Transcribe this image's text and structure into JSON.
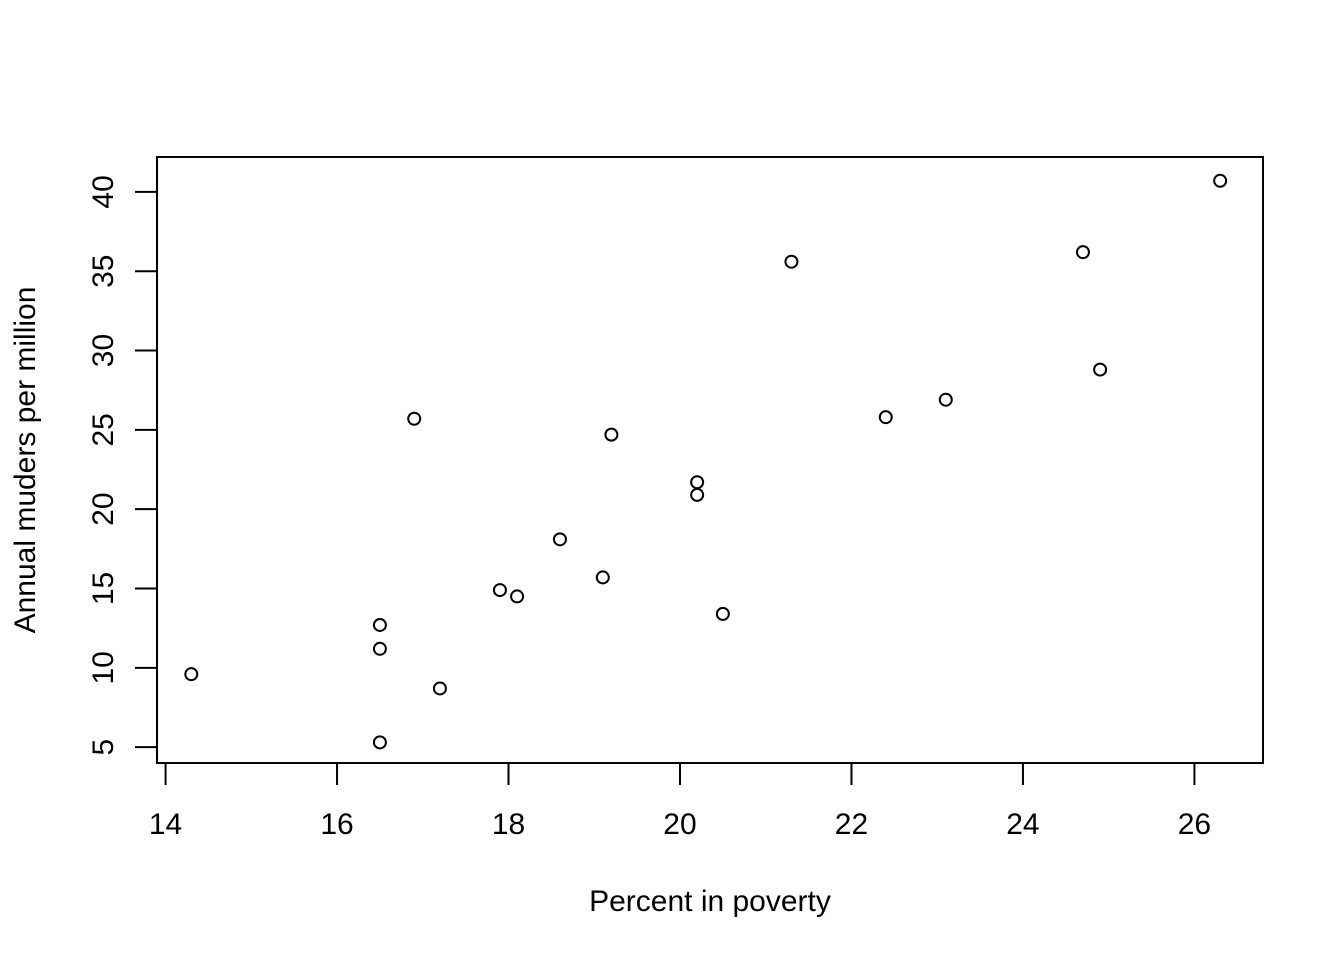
{
  "chart_data": {
    "type": "scatter",
    "title": "",
    "xlabel": "Percent in poverty",
    "ylabel": "Annual muders per million",
    "xlim": [
      13.9,
      26.8
    ],
    "ylim": [
      4.0,
      42.2
    ],
    "xticks": [
      14,
      16,
      18,
      20,
      22,
      24,
      26
    ],
    "yticks": [
      5,
      10,
      15,
      20,
      25,
      30,
      35,
      40
    ],
    "grid": false,
    "legend": "none",
    "marker": "open-circle",
    "marker_color": "#000000",
    "points": [
      {
        "x": 16.5,
        "y": 11.2
      },
      {
        "x": 26.3,
        "y": 40.7
      },
      {
        "x": 17.2,
        "y": 8.7
      },
      {
        "x": 16.5,
        "y": 12.7
      },
      {
        "x": 19.1,
        "y": 15.7
      },
      {
        "x": 16.9,
        "y": 25.7
      },
      {
        "x": 18.1,
        "y": 14.5
      },
      {
        "x": 20.5,
        "y": 13.4
      },
      {
        "x": 22.4,
        "y": 25.8
      },
      {
        "x": 21.3,
        "y": 35.6
      },
      {
        "x": 14.3,
        "y": 9.6
      },
      {
        "x": 23.1,
        "y": 26.9
      },
      {
        "x": 24.9,
        "y": 28.8
      },
      {
        "x": 16.5,
        "y": 5.3
      },
      {
        "x": 18.6,
        "y": 18.1
      },
      {
        "x": 19.2,
        "y": 24.7
      },
      {
        "x": 20.2,
        "y": 21.7
      },
      {
        "x": 20.2,
        "y": 20.9
      },
      {
        "x": 17.9,
        "y": 14.9
      },
      {
        "x": 24.7,
        "y": 36.2
      }
    ]
  }
}
